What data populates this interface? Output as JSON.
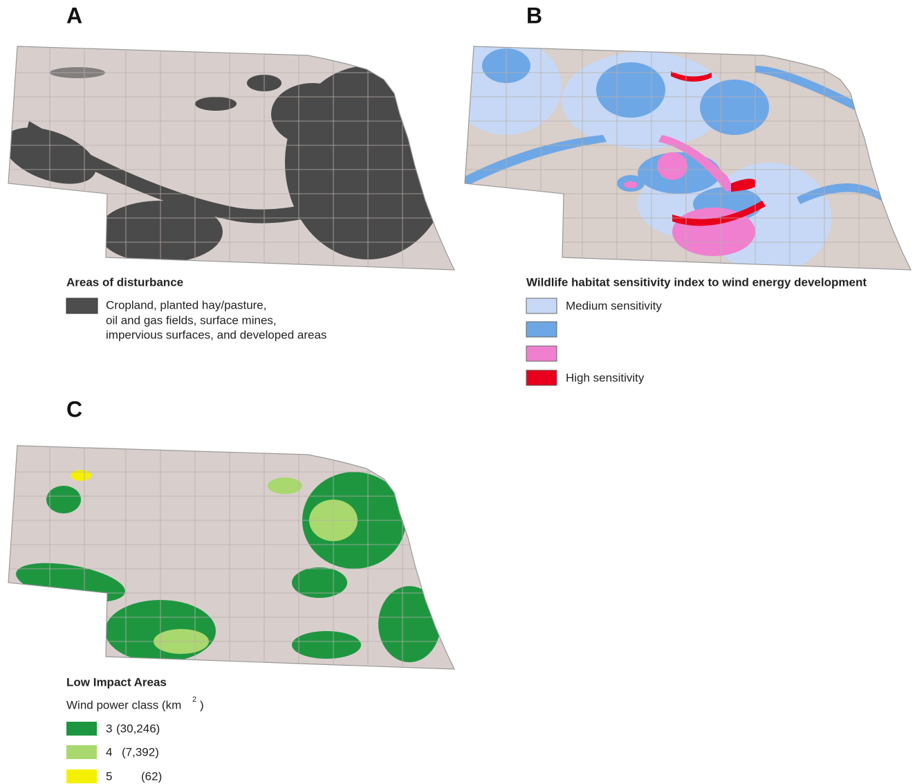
{
  "panels": [
    {
      "letter": "A",
      "legend_title": "Areas of disturbance",
      "legend_lines": [
        "Cropland, planted hay/pasture,",
        "oil and gas fields, surface mines,",
        "impervious surfaces, and developed areas"
      ]
    },
    {
      "letter": "B",
      "legend_title": "Wildlife habitat sensitivity index to wind energy development",
      "legend_low": "Medium sensitivity",
      "legend_high": "High sensitivity"
    },
    {
      "letter": "C",
      "legend_title": "Low Impact Areas",
      "unit_text": "Wind power class (km",
      "unit_superscript": "2",
      "unit_close": ")",
      "classes": [
        {
          "class": "3",
          "area": "(30,246)"
        },
        {
          "class": "4",
          "area": "(7,392)"
        },
        {
          "class": "5",
          "area": "(62)"
        }
      ]
    }
  ]
}
